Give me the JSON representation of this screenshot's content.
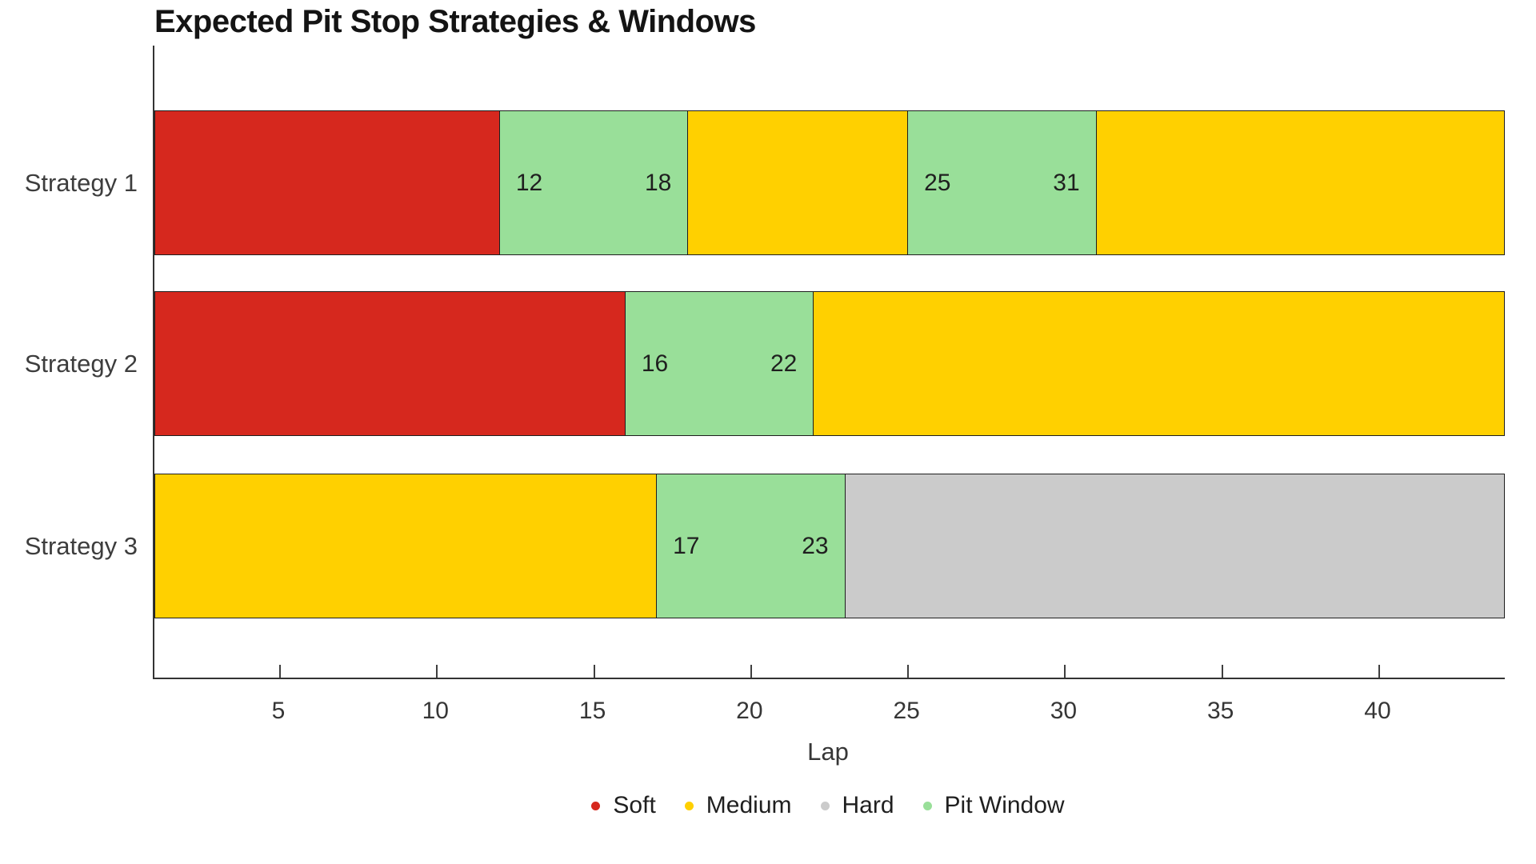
{
  "chart_data": {
    "type": "bar",
    "orientation": "horizontal",
    "title": "Expected Pit Stop Strategies & Windows",
    "xlabel": "Lap",
    "x_range": [
      1,
      44
    ],
    "x_ticks": [
      5,
      10,
      15,
      20,
      25,
      30,
      35,
      40
    ],
    "grid": false,
    "legend_position": "bottom-center",
    "categories": [
      "Strategy 1",
      "Strategy 2",
      "Strategy 3"
    ],
    "colors": {
      "Soft": "#D6281E",
      "Medium": "#FFD000",
      "Hard": "#CBCBCB",
      "Pit Window": "#99DF99"
    },
    "legend": [
      {
        "label": "Soft",
        "color": "#D6281E"
      },
      {
        "label": "Medium",
        "color": "#FFD000"
      },
      {
        "label": "Hard",
        "color": "#CBCBCB"
      },
      {
        "label": "Pit Window",
        "color": "#99DF99"
      }
    ],
    "rows": [
      {
        "label": "Strategy 1",
        "segments": [
          {
            "type": "Soft",
            "start": 1,
            "end": 12
          },
          {
            "type": "Pit Window",
            "start": 12,
            "end": 18,
            "labels": [
              "12",
              "18"
            ]
          },
          {
            "type": "Medium",
            "start": 18,
            "end": 25
          },
          {
            "type": "Pit Window",
            "start": 25,
            "end": 31,
            "labels": [
              "25",
              "31"
            ]
          },
          {
            "type": "Medium",
            "start": 31,
            "end": 44
          }
        ]
      },
      {
        "label": "Strategy 2",
        "segments": [
          {
            "type": "Soft",
            "start": 1,
            "end": 16
          },
          {
            "type": "Pit Window",
            "start": 16,
            "end": 22,
            "labels": [
              "16",
              "22"
            ]
          },
          {
            "type": "Medium",
            "start": 22,
            "end": 44
          }
        ]
      },
      {
        "label": "Strategy 3",
        "segments": [
          {
            "type": "Medium",
            "start": 1,
            "end": 17
          },
          {
            "type": "Pit Window",
            "start": 17,
            "end": 23,
            "labels": [
              "17",
              "23"
            ]
          },
          {
            "type": "Hard",
            "start": 23,
            "end": 44
          }
        ]
      }
    ]
  }
}
